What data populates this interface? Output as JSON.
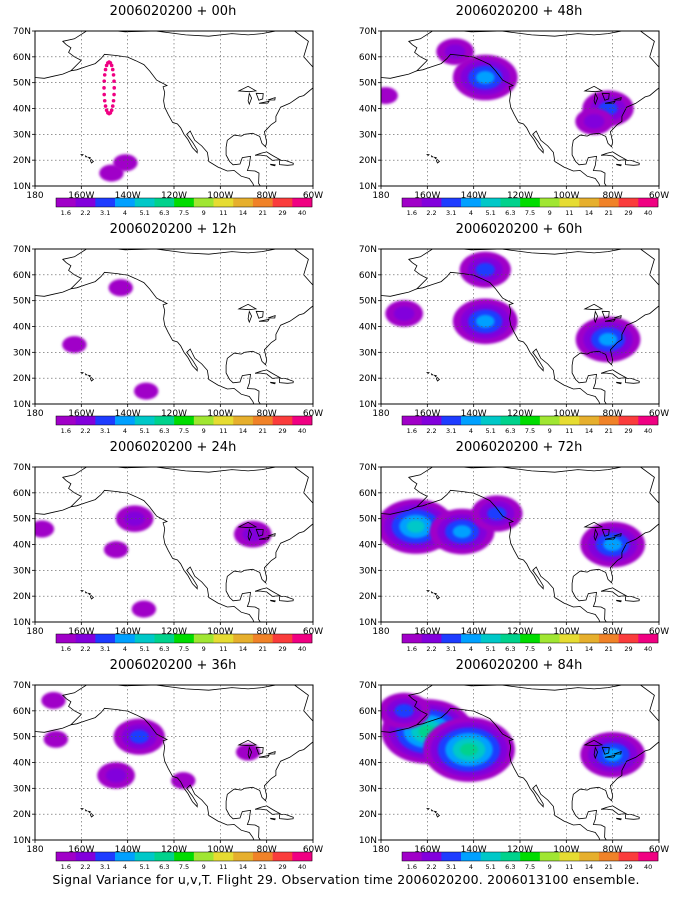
{
  "figure": {
    "caption": "Signal Variance for u,v,T. Flight 29. Observation time 2006020200. 2006013100 ensemble."
  },
  "axes": {
    "lat_ticks": [
      "10N",
      "20N",
      "30N",
      "40N",
      "50N",
      "60N",
      "70N"
    ],
    "lon_ticks": [
      "180",
      "160W",
      "140W",
      "120W",
      "100W",
      "80W",
      "60W"
    ]
  },
  "colorbar": {
    "labels": [
      "1.6",
      "2.2",
      "3.1",
      "4",
      "5.1",
      "6.3",
      "7.5",
      "9",
      "11",
      "14",
      "21",
      "29",
      "40"
    ],
    "colors": [
      "#a000c8",
      "#8200dc",
      "#1e3cff",
      "#00a0ff",
      "#00c8c8",
      "#00d28c",
      "#00dc00",
      "#a0e632",
      "#e6dc32",
      "#e6af2d",
      "#f08228",
      "#fa3c3c",
      "#f00082"
    ]
  },
  "chart_data": [
    {
      "type": "heatmap",
      "title": "2006020200 + 00h",
      "lead_hours": 0,
      "max_level_index": 12,
      "xlim": [
        -180,
        -60
      ],
      "ylim": [
        10,
        70
      ],
      "features": [
        {
          "lon": -148,
          "lat": 52,
          "level": 12,
          "note": "flight track dots"
        },
        {
          "lon": -147,
          "lat": 15,
          "level": 0
        },
        {
          "lon": -141,
          "lat": 19,
          "level": 0
        }
      ]
    },
    {
      "type": "heatmap",
      "title": "2006020200 + 12h",
      "lead_hours": 12,
      "max_level_index": 0,
      "xlim": [
        -180,
        -60
      ],
      "ylim": [
        10,
        70
      ],
      "features": [
        {
          "lon": -143,
          "lat": 55,
          "level": 0
        },
        {
          "lon": -163,
          "lat": 33,
          "level": 0
        },
        {
          "lon": -132,
          "lat": 15,
          "level": 0
        }
      ]
    },
    {
      "type": "heatmap",
      "title": "2006020200 + 24h",
      "lead_hours": 24,
      "max_level_index": 1,
      "xlim": [
        -180,
        -60
      ],
      "ylim": [
        10,
        70
      ],
      "features": [
        {
          "lon": -137,
          "lat": 50,
          "level": 1
        },
        {
          "lon": -145,
          "lat": 38,
          "level": 0
        },
        {
          "lon": -177,
          "lat": 46,
          "level": 0
        },
        {
          "lon": -86,
          "lat": 44,
          "level": 1
        },
        {
          "lon": -133,
          "lat": 15,
          "level": 0
        }
      ]
    },
    {
      "type": "heatmap",
      "title": "2006020200 + 36h",
      "lead_hours": 36,
      "max_level_index": 2,
      "xlim": [
        -180,
        -60
      ],
      "ylim": [
        10,
        70
      ],
      "features": [
        {
          "lon": -135,
          "lat": 50,
          "level": 2
        },
        {
          "lon": -145,
          "lat": 35,
          "level": 1
        },
        {
          "lon": -171,
          "lat": 49,
          "level": 0
        },
        {
          "lon": -88,
          "lat": 44,
          "level": 0
        },
        {
          "lon": -116,
          "lat": 33,
          "level": 0
        },
        {
          "lon": -172,
          "lat": 64,
          "level": 0
        }
      ]
    },
    {
      "type": "heatmap",
      "title": "2006020200 + 48h",
      "lead_hours": 48,
      "max_level_index": 3,
      "xlim": [
        -180,
        -60
      ],
      "ylim": [
        10,
        70
      ],
      "features": [
        {
          "lon": -135,
          "lat": 52,
          "level": 3
        },
        {
          "lon": -148,
          "lat": 62,
          "level": 1
        },
        {
          "lon": -82,
          "lat": 40,
          "level": 2
        },
        {
          "lon": -88,
          "lat": 35,
          "level": 1
        },
        {
          "lon": -178,
          "lat": 45,
          "level": 0
        }
      ]
    },
    {
      "type": "heatmap",
      "title": "2006020200 + 60h",
      "lead_hours": 60,
      "max_level_index": 4,
      "xlim": [
        -180,
        -60
      ],
      "ylim": [
        10,
        70
      ],
      "features": [
        {
          "lon": -135,
          "lat": 42,
          "level": 3
        },
        {
          "lon": -82,
          "lat": 35,
          "level": 3
        },
        {
          "lon": -135,
          "lat": 62,
          "level": 2
        },
        {
          "lon": -170,
          "lat": 45,
          "level": 1
        }
      ]
    },
    {
      "type": "heatmap",
      "title": "2006020200 + 72h",
      "lead_hours": 72,
      "max_level_index": 4,
      "xlim": [
        -180,
        -60
      ],
      "ylim": [
        10,
        70
      ],
      "features": [
        {
          "lon": -165,
          "lat": 47,
          "level": 4
        },
        {
          "lon": -145,
          "lat": 45,
          "level": 3
        },
        {
          "lon": -80,
          "lat": 40,
          "level": 3
        },
        {
          "lon": -130,
          "lat": 52,
          "level": 2
        }
      ]
    },
    {
      "type": "heatmap",
      "title": "2006020200 + 84h",
      "lead_hours": 84,
      "max_level_index": 5,
      "xlim": [
        -180,
        -60
      ],
      "ylim": [
        10,
        70
      ],
      "features": [
        {
          "lon": -160,
          "lat": 52,
          "level": 5
        },
        {
          "lon": -142,
          "lat": 45,
          "level": 5
        },
        {
          "lon": -80,
          "lat": 43,
          "level": 3
        },
        {
          "lon": -170,
          "lat": 60,
          "level": 2
        }
      ]
    }
  ]
}
